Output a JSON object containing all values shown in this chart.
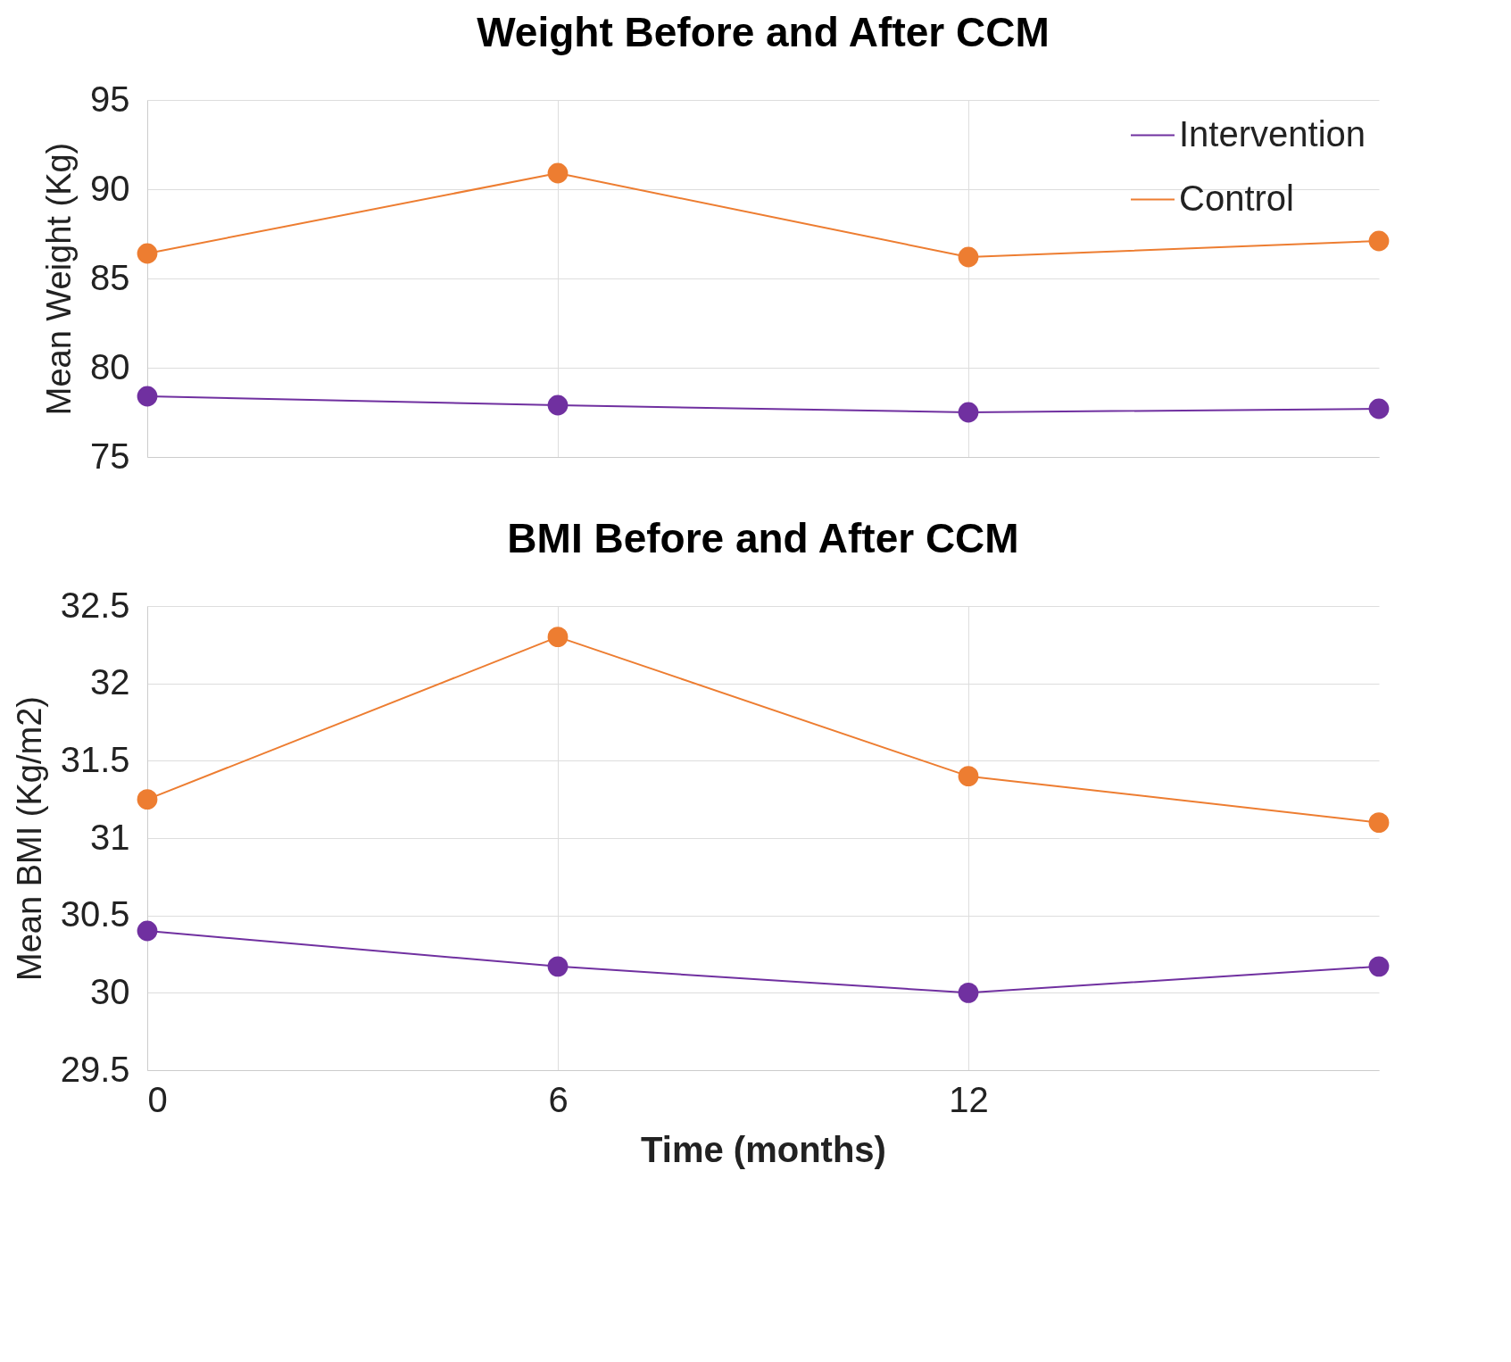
{
  "chart_data": [
    {
      "type": "line",
      "title": "Weight Before and After CCM",
      "ylabel": "Mean Weight (Kg)",
      "x": [
        0,
        6,
        12,
        18
      ],
      "xlim": [
        0,
        18
      ],
      "xticks": [
        0,
        6,
        12
      ],
      "ylim": [
        75,
        95
      ],
      "yticks": [
        75,
        80,
        85,
        90,
        95
      ],
      "tick_labels": "y",
      "grid": true,
      "legend": "top right",
      "marker": "circle",
      "line_style": "solid",
      "series": [
        {
          "name": "Intervention",
          "color": "#7030a0",
          "values": [
            78.4,
            77.9,
            77.5,
            77.7
          ]
        },
        {
          "name": "Control",
          "color": "#ed7d31",
          "values": [
            86.4,
            90.9,
            86.2,
            87.1
          ]
        }
      ]
    },
    {
      "type": "line",
      "title": "BMI Before and After CCM",
      "xlabel": "Time (months)",
      "ylabel": "Mean BMI (Kg/m2)",
      "x": [
        0,
        6,
        12,
        18
      ],
      "xlim": [
        0,
        18
      ],
      "xticks": [
        0,
        6,
        12
      ],
      "ylim": [
        29.5,
        32.5
      ],
      "yticks": [
        29.5,
        30,
        30.5,
        31,
        31.5,
        32,
        32.5
      ],
      "grid": true,
      "legend": false,
      "marker": "circle",
      "line_style": "solid",
      "series": [
        {
          "color": "#7030a0",
          "values": [
            30.4,
            30.17,
            30.0,
            30.17
          ]
        },
        {
          "color": "#ed7d31",
          "values": [
            31.25,
            32.3,
            31.4,
            31.1
          ]
        }
      ]
    }
  ]
}
